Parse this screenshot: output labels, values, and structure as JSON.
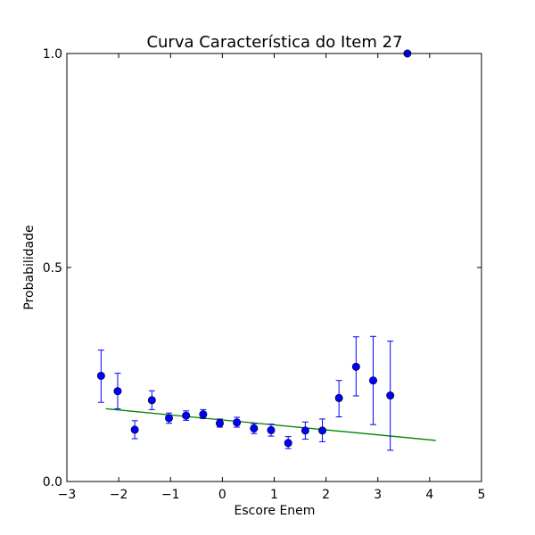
{
  "chart_data": {
    "type": "scatter",
    "title": "Curva Característica do Item 27",
    "xlabel": "Escore Enem",
    "ylabel": "Probabilidade",
    "xlim": [
      -3,
      5
    ],
    "ylim": [
      0,
      1
    ],
    "x_ticks": [
      -3,
      -2,
      -1,
      0,
      1,
      2,
      3,
      4,
      5
    ],
    "x_tick_labels": [
      "−3",
      "−2",
      "−1",
      "0",
      "1",
      "2",
      "3",
      "4",
      "5"
    ],
    "y_ticks": [
      0,
      0.5,
      1
    ],
    "y_tick_labels": [
      "0.0",
      "0.5",
      "1.0"
    ],
    "grid": false,
    "series": [
      {
        "kind": "errorbar",
        "color": "#0000ff",
        "points": [
          {
            "x": -2.34,
            "y": 0.247,
            "low": 0.185,
            "high": 0.307
          },
          {
            "x": -2.02,
            "y": 0.211,
            "low": 0.17,
            "high": 0.253
          },
          {
            "x": -1.69,
            "y": 0.121,
            "low": 0.1,
            "high": 0.142
          },
          {
            "x": -1.36,
            "y": 0.19,
            "low": 0.168,
            "high": 0.212
          },
          {
            "x": -1.03,
            "y": 0.148,
            "low": 0.136,
            "high": 0.16
          },
          {
            "x": -0.7,
            "y": 0.154,
            "low": 0.143,
            "high": 0.165
          },
          {
            "x": -0.37,
            "y": 0.157,
            "low": 0.147,
            "high": 0.168
          },
          {
            "x": -0.05,
            "y": 0.136,
            "low": 0.127,
            "high": 0.146
          },
          {
            "x": 0.28,
            "y": 0.138,
            "low": 0.127,
            "high": 0.15
          },
          {
            "x": 0.61,
            "y": 0.124,
            "low": 0.112,
            "high": 0.135
          },
          {
            "x": 0.94,
            "y": 0.12,
            "low": 0.106,
            "high": 0.134
          },
          {
            "x": 1.27,
            "y": 0.09,
            "low": 0.077,
            "high": 0.105
          },
          {
            "x": 1.6,
            "y": 0.119,
            "low": 0.099,
            "high": 0.139
          },
          {
            "x": 1.93,
            "y": 0.119,
            "low": 0.093,
            "high": 0.146
          },
          {
            "x": 2.25,
            "y": 0.195,
            "low": 0.151,
            "high": 0.236
          },
          {
            "x": 2.58,
            "y": 0.268,
            "low": 0.2,
            "high": 0.338
          },
          {
            "x": 2.91,
            "y": 0.236,
            "low": 0.133,
            "high": 0.339
          },
          {
            "x": 3.24,
            "y": 0.201,
            "low": 0.073,
            "high": 0.328
          },
          {
            "x": 3.57,
            "y": 1.0,
            "low": 1.0,
            "high": 1.0
          }
        ]
      },
      {
        "kind": "line",
        "color": "#008000",
        "points": [
          {
            "x": -2.25,
            "y": 0.17
          },
          {
            "x": 4.12,
            "y": 0.096
          }
        ]
      }
    ]
  }
}
